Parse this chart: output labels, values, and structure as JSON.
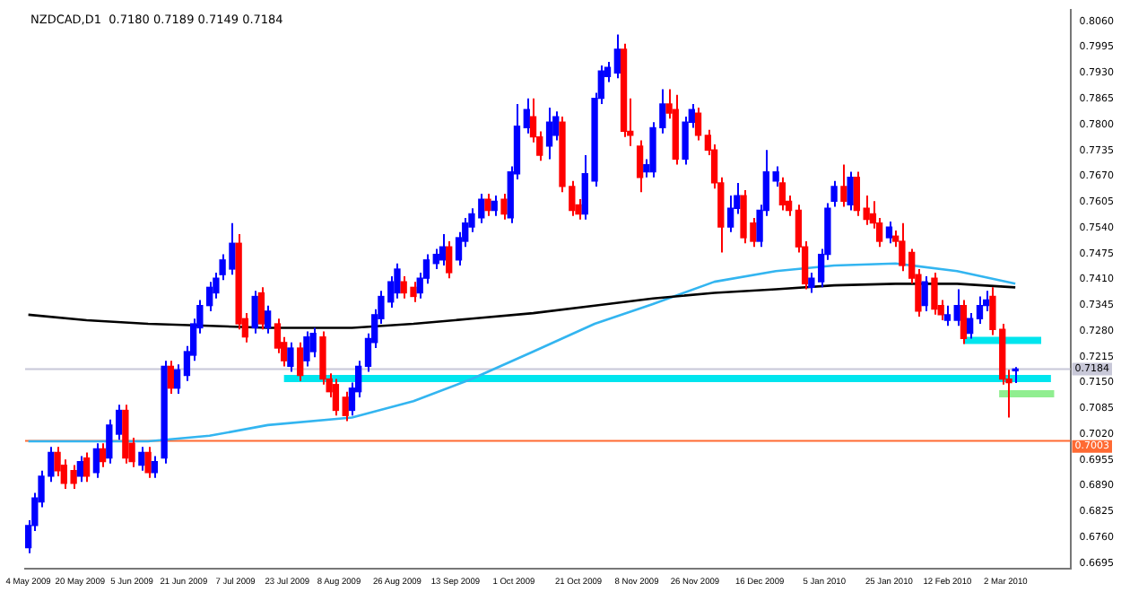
{
  "chart_data": {
    "type": "candlestick",
    "title": "NZDCAD,D1  0.7180 0.7189 0.7149 0.7184",
    "x": [
      "2009-05-04",
      "2009-05-06",
      "2009-05-08",
      "2009-05-11",
      "2009-05-13",
      "2009-05-15",
      "2009-05-18",
      "2009-05-20",
      "2009-05-22",
      "2009-05-25",
      "2009-05-27",
      "2009-05-29",
      "2009-06-01",
      "2009-06-03",
      "2009-06-05",
      "2009-06-08",
      "2009-06-10",
      "2009-06-12",
      "2009-06-15",
      "2009-06-17",
      "2009-06-19",
      "2009-06-22",
      "2009-06-24",
      "2009-06-26",
      "2009-06-29",
      "2009-07-01",
      "2009-07-03",
      "2009-07-06",
      "2009-07-08",
      "2009-07-10",
      "2009-07-13",
      "2009-07-15",
      "2009-07-17",
      "2009-07-20",
      "2009-07-22",
      "2009-07-24",
      "2009-07-27",
      "2009-07-29",
      "2009-07-31",
      "2009-08-03",
      "2009-08-05",
      "2009-08-07",
      "2009-08-10",
      "2009-08-12",
      "2009-08-14",
      "2009-08-17",
      "2009-08-19",
      "2009-08-21",
      "2009-08-24",
      "2009-08-26",
      "2009-08-28",
      "2009-08-31",
      "2009-09-02",
      "2009-09-04",
      "2009-09-07",
      "2009-09-09",
      "2009-09-11",
      "2009-09-14",
      "2009-09-16",
      "2009-09-18",
      "2009-09-21",
      "2009-09-23",
      "2009-09-25",
      "2009-09-28",
      "2009-09-30",
      "2009-10-02",
      "2009-10-05",
      "2009-10-07",
      "2009-10-09",
      "2009-10-12",
      "2009-10-14",
      "2009-10-16",
      "2009-10-19",
      "2009-10-21",
      "2009-10-23",
      "2009-10-26",
      "2009-10-28",
      "2009-10-30",
      "2009-11-02",
      "2009-11-04",
      "2009-11-06",
      "2009-11-09",
      "2009-11-11",
      "2009-11-13",
      "2009-11-16",
      "2009-11-18",
      "2009-11-20",
      "2009-11-23",
      "2009-11-25",
      "2009-11-27",
      "2009-11-30",
      "2009-12-02",
      "2009-12-04",
      "2009-12-07",
      "2009-12-09",
      "2009-12-11",
      "2009-12-14",
      "2009-12-16",
      "2009-12-18",
      "2009-12-21",
      "2009-12-23",
      "2009-12-25",
      "2009-12-28",
      "2009-12-30",
      "2010-01-01",
      "2010-01-04",
      "2010-01-06",
      "2010-01-08",
      "2010-01-11",
      "2010-01-13",
      "2010-01-15",
      "2010-01-18",
      "2010-01-20",
      "2010-01-22",
      "2010-01-25",
      "2010-01-27",
      "2010-01-29",
      "2010-02-01",
      "2010-02-03",
      "2010-02-05",
      "2010-02-08",
      "2010-02-10",
      "2010-02-12",
      "2010-02-15",
      "2010-02-17",
      "2010-02-19",
      "2010-02-22",
      "2010-02-24",
      "2010-02-26",
      "2010-03-01",
      "2010-03-03",
      "2010-03-05"
    ],
    "ohlc": [
      [
        0.6734,
        0.6803,
        0.672,
        0.679
      ],
      [
        0.679,
        0.6872,
        0.6776,
        0.6859
      ],
      [
        0.6849,
        0.6928,
        0.6836,
        0.6914
      ],
      [
        0.6914,
        0.6988,
        0.69,
        0.6974
      ],
      [
        0.6974,
        0.6988,
        0.6914,
        0.6928
      ],
      [
        0.6942,
        0.6956,
        0.6882,
        0.6896
      ],
      [
        0.6928,
        0.6942,
        0.6882,
        0.6896
      ],
      [
        0.6914,
        0.6965,
        0.69,
        0.6951
      ],
      [
        0.696,
        0.6974,
        0.69,
        0.6914
      ],
      [
        0.6923,
        0.6997,
        0.691,
        0.6983
      ],
      [
        0.6983,
        0.6997,
        0.6937,
        0.6951
      ],
      [
        0.696,
        0.7057,
        0.6946,
        0.7043
      ],
      [
        0.702,
        0.7094,
        0.7006,
        0.708
      ],
      [
        0.708,
        0.7094,
        0.6946,
        0.696
      ],
      [
        0.6997,
        0.7011,
        0.6937,
        0.6951
      ],
      [
        0.6942,
        0.6988,
        0.6928,
        0.6974
      ],
      [
        0.6974,
        0.6988,
        0.691,
        0.6923
      ],
      [
        0.6923,
        0.6965,
        0.691,
        0.6951
      ],
      [
        0.696,
        0.7205,
        0.6946,
        0.7191
      ],
      [
        0.7191,
        0.7205,
        0.7122,
        0.7136
      ],
      [
        0.7136,
        0.7196,
        0.7122,
        0.7182
      ],
      [
        0.7168,
        0.7242,
        0.7154,
        0.7228
      ],
      [
        0.7219,
        0.7311,
        0.7205,
        0.7298
      ],
      [
        0.7288,
        0.7358,
        0.7274,
        0.7344
      ],
      [
        0.7344,
        0.7404,
        0.733,
        0.739
      ],
      [
        0.7376,
        0.7427,
        0.7362,
        0.7413
      ],
      [
        0.7422,
        0.7473,
        0.7408,
        0.7459
      ],
      [
        0.7436,
        0.7552,
        0.7422,
        0.7501
      ],
      [
        0.7501,
        0.7524,
        0.7284,
        0.7298
      ],
      [
        0.7311,
        0.7325,
        0.7251,
        0.7265
      ],
      [
        0.7288,
        0.7381,
        0.7274,
        0.7367
      ],
      [
        0.7376,
        0.739,
        0.7284,
        0.7298
      ],
      [
        0.7288,
        0.7344,
        0.7274,
        0.733
      ],
      [
        0.7298,
        0.7311,
        0.7224,
        0.7237
      ],
      [
        0.7251,
        0.7265,
        0.7191,
        0.7205
      ],
      [
        0.7191,
        0.7251,
        0.7177,
        0.7237
      ],
      [
        0.7237,
        0.7251,
        0.7154,
        0.7168
      ],
      [
        0.7205,
        0.7279,
        0.7191,
        0.7265
      ],
      [
        0.7228,
        0.7288,
        0.7214,
        0.7274
      ],
      [
        0.7265,
        0.7279,
        0.7145,
        0.7159
      ],
      [
        0.7159,
        0.7173,
        0.7113,
        0.7127
      ],
      [
        0.7145,
        0.7159,
        0.7067,
        0.708
      ],
      [
        0.7113,
        0.7127,
        0.7053,
        0.7067
      ],
      [
        0.708,
        0.715,
        0.7067,
        0.7136
      ],
      [
        0.7127,
        0.7205,
        0.7113,
        0.7191
      ],
      [
        0.7191,
        0.7274,
        0.7177,
        0.7261
      ],
      [
        0.7251,
        0.7335,
        0.7237,
        0.7321
      ],
      [
        0.7311,
        0.7381,
        0.7298,
        0.7367
      ],
      [
        0.7353,
        0.7418,
        0.7339,
        0.7404
      ],
      [
        0.7376,
        0.745,
        0.7362,
        0.7436
      ],
      [
        0.7404,
        0.7418,
        0.7362,
        0.7376
      ],
      [
        0.739,
        0.7404,
        0.7353,
        0.7367
      ],
      [
        0.7376,
        0.7427,
        0.7362,
        0.7413
      ],
      [
        0.7413,
        0.7473,
        0.7399,
        0.7459
      ],
      [
        0.745,
        0.7487,
        0.7436,
        0.7473
      ],
      [
        0.7459,
        0.7524,
        0.7445,
        0.7492
      ],
      [
        0.7492,
        0.7506,
        0.7413,
        0.7427
      ],
      [
        0.7459,
        0.7529,
        0.7445,
        0.7515
      ],
      [
        0.7506,
        0.7565,
        0.7492,
        0.7552
      ],
      [
        0.7542,
        0.7589,
        0.7529,
        0.7575
      ],
      [
        0.7565,
        0.7626,
        0.7552,
        0.7612
      ],
      [
        0.7612,
        0.7626,
        0.757,
        0.7584
      ],
      [
        0.7584,
        0.7621,
        0.757,
        0.7607
      ],
      [
        0.7612,
        0.7626,
        0.7561,
        0.7575
      ],
      [
        0.7565,
        0.7695,
        0.7552,
        0.7681
      ],
      [
        0.7676,
        0.7852,
        0.7662,
        0.7796
      ],
      [
        0.7792,
        0.7866,
        0.7778,
        0.7838
      ],
      [
        0.782,
        0.7866,
        0.7755,
        0.7769
      ],
      [
        0.7769,
        0.7783,
        0.7709,
        0.7723
      ],
      [
        0.7746,
        0.7843,
        0.7713,
        0.7806
      ],
      [
        0.7773,
        0.7833,
        0.776,
        0.782
      ],
      [
        0.7806,
        0.782,
        0.763,
        0.7644
      ],
      [
        0.7644,
        0.7658,
        0.757,
        0.7584
      ],
      [
        0.7598,
        0.7612,
        0.7561,
        0.7575
      ],
      [
        0.7575,
        0.7723,
        0.7561,
        0.7676
      ],
      [
        0.7658,
        0.788,
        0.7644,
        0.7866
      ],
      [
        0.7866,
        0.7949,
        0.7852,
        0.7935
      ],
      [
        0.7921,
        0.7958,
        0.7907,
        0.7944
      ],
      [
        0.793,
        0.8027,
        0.7917,
        0.799
      ],
      [
        0.799,
        0.8004,
        0.7769,
        0.7783
      ],
      [
        0.7783,
        0.7866,
        0.7746,
        0.7773
      ],
      [
        0.7746,
        0.776,
        0.763,
        0.7667
      ],
      [
        0.7681,
        0.7713,
        0.7667,
        0.7699
      ],
      [
        0.7681,
        0.7806,
        0.7667,
        0.7792
      ],
      [
        0.7792,
        0.7889,
        0.7778,
        0.7852
      ],
      [
        0.7852,
        0.7889,
        0.7815,
        0.7829
      ],
      [
        0.7838,
        0.7875,
        0.7699,
        0.7713
      ],
      [
        0.7713,
        0.782,
        0.7699,
        0.7806
      ],
      [
        0.7806,
        0.7852,
        0.7792,
        0.7838
      ],
      [
        0.7829,
        0.7843,
        0.776,
        0.7773
      ],
      [
        0.7773,
        0.7787,
        0.7723,
        0.7736
      ],
      [
        0.7736,
        0.775,
        0.7639,
        0.7653
      ],
      [
        0.7653,
        0.7667,
        0.7478,
        0.7542
      ],
      [
        0.7542,
        0.7621,
        0.7529,
        0.7589
      ],
      [
        0.7589,
        0.7653,
        0.7575,
        0.7621
      ],
      [
        0.7621,
        0.7635,
        0.7501,
        0.7515
      ],
      [
        0.7552,
        0.7565,
        0.7492,
        0.7506
      ],
      [
        0.7506,
        0.7598,
        0.7492,
        0.7584
      ],
      [
        0.7584,
        0.7736,
        0.757,
        0.7681
      ],
      [
        0.7658,
        0.7695,
        0.7644,
        0.7681
      ],
      [
        0.7653,
        0.7667,
        0.7584,
        0.7598
      ],
      [
        0.7607,
        0.7621,
        0.757,
        0.7584
      ],
      [
        0.7584,
        0.7598,
        0.7478,
        0.7492
      ],
      [
        0.7492,
        0.7506,
        0.7385,
        0.7399
      ],
      [
        0.739,
        0.7427,
        0.7376,
        0.7413
      ],
      [
        0.7404,
        0.7487,
        0.739,
        0.7473
      ],
      [
        0.7473,
        0.7602,
        0.7459,
        0.7589
      ],
      [
        0.7607,
        0.7658,
        0.7593,
        0.7644
      ],
      [
        0.7644,
        0.7699,
        0.7593,
        0.7607
      ],
      [
        0.7598,
        0.7681,
        0.7584,
        0.7667
      ],
      [
        0.7667,
        0.7681,
        0.757,
        0.7584
      ],
      [
        0.7589,
        0.7621,
        0.7547,
        0.7561
      ],
      [
        0.7575,
        0.7607,
        0.7538,
        0.7552
      ],
      [
        0.7552,
        0.7565,
        0.7492,
        0.7506
      ],
      [
        0.7515,
        0.7556,
        0.7501,
        0.7542
      ],
      [
        0.7519,
        0.7533,
        0.7492,
        0.7506
      ],
      [
        0.7506,
        0.7552,
        0.7431,
        0.7445
      ],
      [
        0.7478,
        0.7487,
        0.7399,
        0.7413
      ],
      [
        0.7422,
        0.7436,
        0.7316,
        0.733
      ],
      [
        0.7344,
        0.7418,
        0.733,
        0.7404
      ],
      [
        0.7413,
        0.7427,
        0.7321,
        0.7335
      ],
      [
        0.7344,
        0.7358,
        0.7307,
        0.7321
      ],
      [
        0.7307,
        0.7344,
        0.7293,
        0.7321
      ],
      [
        0.7307,
        0.7385,
        0.7293,
        0.7344
      ],
      [
        0.7344,
        0.7358,
        0.7247,
        0.7261
      ],
      [
        0.7274,
        0.7325,
        0.7261,
        0.7311
      ],
      [
        0.7311,
        0.7367,
        0.7298,
        0.7344
      ],
      [
        0.7344,
        0.7381,
        0.733,
        0.7358
      ],
      [
        0.7367,
        0.739,
        0.727,
        0.7284
      ],
      [
        0.7284,
        0.7298,
        0.7145,
        0.7159
      ],
      [
        0.7159,
        0.7182,
        0.7062,
        0.715
      ],
      [
        0.718,
        0.7189,
        0.7149,
        0.7184
      ]
    ],
    "colors": [
      "#0000ff",
      "#0000ff",
      "#0000ff",
      "#0000ff",
      "#ff0000",
      "#ff0000",
      "#ff0000",
      "#0000ff",
      "#ff0000",
      "#0000ff",
      "#ff0000",
      "#0000ff",
      "#0000ff",
      "#ff0000",
      "#ff0000",
      "#0000ff",
      "#ff0000",
      "#0000ff",
      "#0000ff",
      "#ff0000",
      "#0000ff",
      "#0000ff",
      "#0000ff",
      "#0000ff",
      "#0000ff",
      "#0000ff",
      "#0000ff",
      "#0000ff",
      "#ff0000",
      "#ff0000",
      "#0000ff",
      "#ff0000",
      "#0000ff",
      "#ff0000",
      "#ff0000",
      "#0000ff",
      "#ff0000",
      "#0000ff",
      "#0000ff",
      "#ff0000",
      "#ff0000",
      "#ff0000",
      "#ff0000",
      "#0000ff",
      "#0000ff",
      "#0000ff",
      "#0000ff",
      "#0000ff",
      "#0000ff",
      "#0000ff",
      "#ff0000",
      "#ff0000",
      "#0000ff",
      "#0000ff",
      "#0000ff",
      "#0000ff",
      "#ff0000",
      "#0000ff",
      "#0000ff",
      "#0000ff",
      "#0000ff",
      "#ff0000",
      "#0000ff",
      "#ff0000",
      "#0000ff",
      "#0000ff",
      "#0000ff",
      "#ff0000",
      "#ff0000",
      "#0000ff",
      "#0000ff",
      "#ff0000",
      "#ff0000",
      "#ff0000",
      "#0000ff",
      "#0000ff",
      "#0000ff",
      "#0000ff",
      "#0000ff",
      "#ff0000",
      "#ff0000",
      "#ff0000",
      "#0000ff",
      "#0000ff",
      "#0000ff",
      "#ff0000",
      "#ff0000",
      "#0000ff",
      "#0000ff",
      "#ff0000",
      "#ff0000",
      "#ff0000",
      "#ff0000",
      "#0000ff",
      "#0000ff",
      "#ff0000",
      "#ff0000",
      "#0000ff",
      "#0000ff",
      "#0000ff",
      "#ff0000",
      "#ff0000",
      "#ff0000",
      "#ff0000",
      "#0000ff",
      "#0000ff",
      "#0000ff",
      "#0000ff",
      "#ff0000",
      "#0000ff",
      "#ff0000",
      "#ff0000",
      "#ff0000",
      "#ff0000",
      "#0000ff",
      "#ff0000",
      "#ff0000",
      "#ff0000",
      "#ff0000",
      "#0000ff",
      "#ff0000",
      "#ff0000",
      "#0000ff",
      "#0000ff",
      "#ff0000",
      "#0000ff",
      "#0000ff",
      "#0000ff",
      "#ff0000",
      "#ff0000",
      "#ff0000",
      "#0000ff"
    ],
    "series": [
      {
        "type": "line",
        "color": "#000000",
        "x": [
          "2009-05-04",
          "2009-05-22",
          "2009-06-10",
          "2009-06-29",
          "2009-07-17",
          "2009-08-12",
          "2009-08-31",
          "2009-09-18",
          "2009-10-07",
          "2009-10-26",
          "2009-11-13",
          "2009-12-02",
          "2009-12-21",
          "2010-01-08",
          "2010-01-27",
          "2010-02-15",
          "2010-03-05"
        ],
        "values": [
          0.7321,
          0.7307,
          0.7298,
          0.7293,
          0.7288,
          0.7288,
          0.7298,
          0.7311,
          0.7325,
          0.7344,
          0.7362,
          0.7376,
          0.7385,
          0.7395,
          0.7399,
          0.7399,
          0.739
        ]
      },
      {
        "type": "line",
        "color": "#33b5f0",
        "x": [
          "2009-05-04",
          "2009-05-22",
          "2009-06-10",
          "2009-06-29",
          "2009-07-17",
          "2009-08-12",
          "2009-08-31",
          "2009-09-18",
          "2009-10-07",
          "2009-10-26",
          "2009-11-13",
          "2009-12-02",
          "2009-12-21",
          "2010-01-08",
          "2010-01-27",
          "2010-02-15",
          "2010-03-05"
        ],
        "values": [
          0.7002,
          0.7002,
          0.7002,
          0.7016,
          0.7043,
          0.7062,
          0.7103,
          0.7159,
          0.7228,
          0.7298,
          0.7348,
          0.7404,
          0.7431,
          0.7445,
          0.745,
          0.7431,
          0.7399
        ]
      },
      {
        "type": "line",
        "color": "#00e5ee",
        "x": [
          "2009-07-22",
          "2010-03-16"
        ],
        "values": [
          0.716,
          0.716
        ]
      },
      {
        "type": "line",
        "color": "#00e5ee",
        "x": [
          "2010-02-17",
          "2010-03-13"
        ],
        "values": [
          0.7256,
          0.7256
        ]
      },
      {
        "type": "line",
        "color": "#90ee90",
        "x": [
          "2010-02-28",
          "2010-03-17"
        ],
        "values": [
          0.7122,
          0.7122
        ]
      }
    ],
    "ref_lines": [
      {
        "axis": "y",
        "value": 0.7003,
        "label": "0.7003",
        "color": "#ff6a33"
      },
      {
        "axis": "y",
        "value": 0.7184,
        "label": "0.7184",
        "color": "#c8c8d8"
      }
    ],
    "xlim": [
      "2009-05-03",
      "2010-03-22"
    ],
    "xticks": [
      {
        "value": "2009-05-04",
        "label": "4 May 2009"
      },
      {
        "value": "2009-05-20",
        "label": "20 May 2009"
      },
      {
        "value": "2009-06-05",
        "label": "5 Jun 2009"
      },
      {
        "value": "2009-06-21",
        "label": "21 Jun 2009"
      },
      {
        "value": "2009-07-07",
        "label": "7 Jul 2009"
      },
      {
        "value": "2009-07-23",
        "label": "23 Jul 2009"
      },
      {
        "value": "2009-08-08",
        "label": "8 Aug 2009"
      },
      {
        "value": "2009-08-26",
        "label": "26 Aug 2009"
      },
      {
        "value": "2009-09-13",
        "label": "13 Sep 2009"
      },
      {
        "value": "2009-10-01",
        "label": "1 Oct 2009"
      },
      {
        "value": "2009-10-21",
        "label": "21 Oct 2009"
      },
      {
        "value": "2009-11-08",
        "label": "8 Nov 2009"
      },
      {
        "value": "2009-11-26",
        "label": "26 Nov 2009"
      },
      {
        "value": "2009-12-16",
        "label": "16 Dec 2009"
      },
      {
        "value": "2010-01-05",
        "label": "5 Jan 2010"
      },
      {
        "value": "2010-01-25",
        "label": "25 Jan 2010"
      },
      {
        "value": "2010-02-12",
        "label": "12 Feb 2010"
      },
      {
        "value": "2010-03-02",
        "label": "2 Mar 2010"
      }
    ],
    "ylim": [
      0.668,
      0.809
    ],
    "yticks": [
      {
        "value": 0.6695,
        "label": "0.6695"
      },
      {
        "value": 0.676,
        "label": "0.6760"
      },
      {
        "value": 0.6825,
        "label": "0.6825"
      },
      {
        "value": 0.689,
        "label": "0.6890"
      },
      {
        "value": 0.6955,
        "label": "0.6955"
      },
      {
        "value": 0.702,
        "label": "0.7020"
      },
      {
        "value": 0.7085,
        "label": "0.7085"
      },
      {
        "value": 0.715,
        "label": "0.7150"
      },
      {
        "value": 0.7215,
        "label": "0.7215"
      },
      {
        "value": 0.728,
        "label": "0.7280"
      },
      {
        "value": 0.7345,
        "label": "0.7345"
      },
      {
        "value": 0.741,
        "label": "0.7410"
      },
      {
        "value": 0.7475,
        "label": "0.7475"
      },
      {
        "value": 0.754,
        "label": "0.7540"
      },
      {
        "value": 0.7605,
        "label": "0.7605"
      },
      {
        "value": 0.767,
        "label": "0.7670"
      },
      {
        "value": 0.7735,
        "label": "0.7735"
      },
      {
        "value": 0.78,
        "label": "0.7800"
      },
      {
        "value": 0.7865,
        "label": "0.7865"
      },
      {
        "value": 0.793,
        "label": "0.7930"
      },
      {
        "value": 0.7995,
        "label": "0.7995"
      },
      {
        "value": 0.806,
        "label": "0.8060"
      }
    ]
  }
}
